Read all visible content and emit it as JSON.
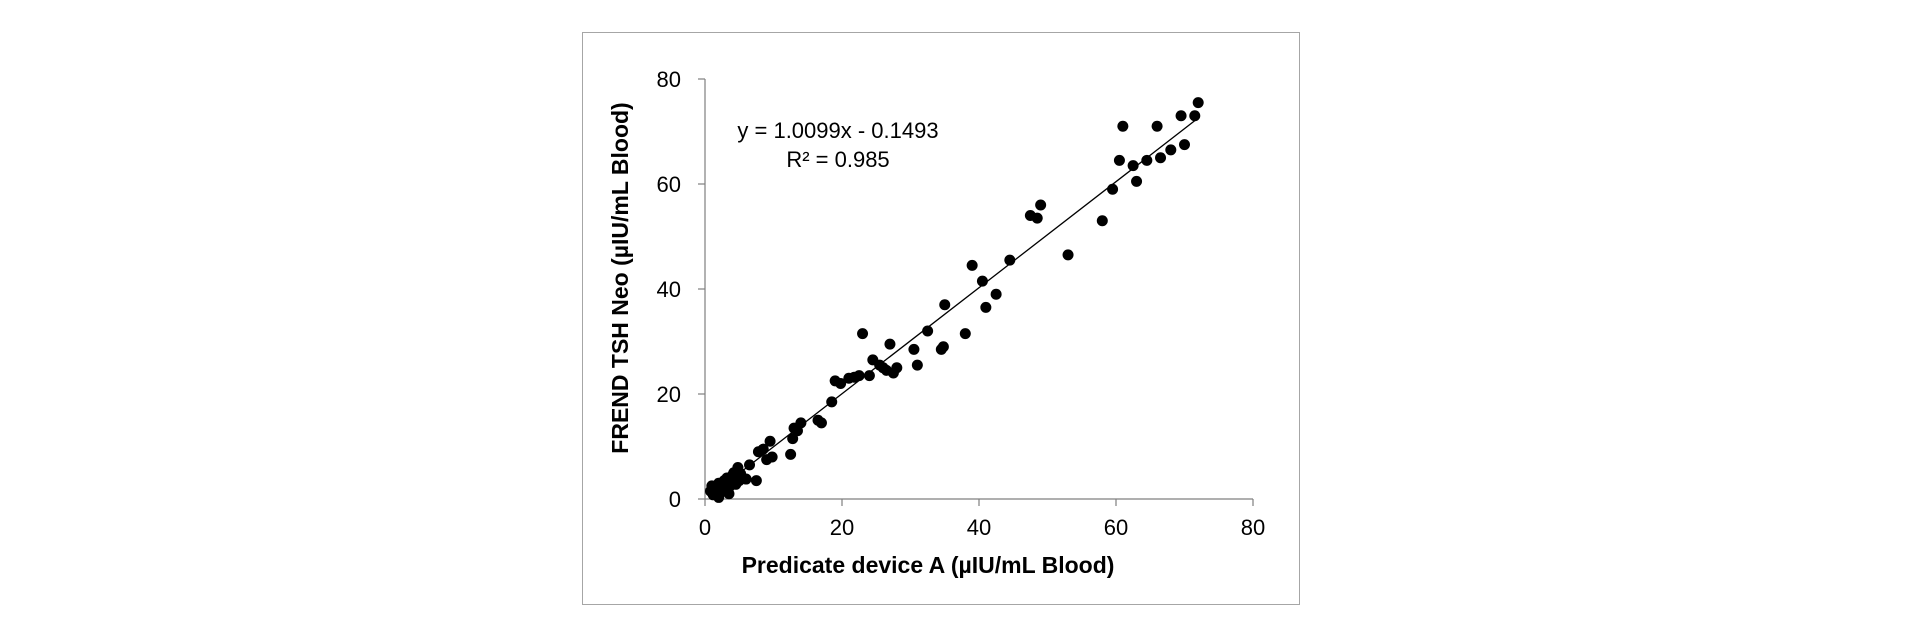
{
  "chart_data": {
    "type": "scatter",
    "xlabel": "Predicate device A (µIU/mL Blood)",
    "ylabel": "FREND TSH Neo (µIU/mL Blood)",
    "xlim": [
      0,
      80
    ],
    "ylim": [
      0,
      80
    ],
    "xticks": [
      0,
      20,
      40,
      60,
      80
    ],
    "yticks": [
      0,
      20,
      40,
      60,
      80
    ],
    "grid": false,
    "trendline": {
      "slope": 1.0099,
      "intercept": -0.1493,
      "x_range": [
        0.5,
        72
      ]
    },
    "annotations": [
      "y = 1.0099x - 0.1493",
      "R² = 0.985"
    ],
    "colors": {
      "points": "#000000",
      "trendline": "#000000",
      "axes": "#7f7f7f",
      "frame": "#a6a6a6"
    },
    "series": [
      {
        "points": [
          [
            0.8,
            1.5
          ],
          [
            1.0,
            2.5
          ],
          [
            1.2,
            0.8
          ],
          [
            1.5,
            2.0
          ],
          [
            1.8,
            1.2
          ],
          [
            2.0,
            0.3
          ],
          [
            2.0,
            3.0
          ],
          [
            2.3,
            1.8
          ],
          [
            2.5,
            2.5
          ],
          [
            2.8,
            3.5
          ],
          [
            3.0,
            1.5
          ],
          [
            3.2,
            4.0
          ],
          [
            3.5,
            2.2
          ],
          [
            3.5,
            1.0
          ],
          [
            3.8,
            3.0
          ],
          [
            4.0,
            4.5
          ],
          [
            4.2,
            5.0
          ],
          [
            4.5,
            2.8
          ],
          [
            4.8,
            6.0
          ],
          [
            5.0,
            3.5
          ],
          [
            5.2,
            4.8
          ],
          [
            5.5,
            4.0
          ],
          [
            6.0,
            3.8
          ],
          [
            6.5,
            6.5
          ],
          [
            7.5,
            3.5
          ],
          [
            7.8,
            9.0
          ],
          [
            8.5,
            9.5
          ],
          [
            9.0,
            7.5
          ],
          [
            9.5,
            11.0
          ],
          [
            9.8,
            8.0
          ],
          [
            12.5,
            8.5
          ],
          [
            12.8,
            11.5
          ],
          [
            13.0,
            13.5
          ],
          [
            13.5,
            13.0
          ],
          [
            14.0,
            14.5
          ],
          [
            16.5,
            15.0
          ],
          [
            17.0,
            14.5
          ],
          [
            18.5,
            18.5
          ],
          [
            19.0,
            22.5
          ],
          [
            19.8,
            22.0
          ],
          [
            21.0,
            23.0
          ],
          [
            21.8,
            23.2
          ],
          [
            22.5,
            23.5
          ],
          [
            23.0,
            31.5
          ],
          [
            24.0,
            23.5
          ],
          [
            24.5,
            26.5
          ],
          [
            25.5,
            25.5
          ],
          [
            26.0,
            25.0
          ],
          [
            26.5,
            24.5
          ],
          [
            27.0,
            29.5
          ],
          [
            27.5,
            24.0
          ],
          [
            28.0,
            25.0
          ],
          [
            30.5,
            28.5
          ],
          [
            31.0,
            25.5
          ],
          [
            32.5,
            32.0
          ],
          [
            34.5,
            28.5
          ],
          [
            34.8,
            29.0
          ],
          [
            35.0,
            37.0
          ],
          [
            38.0,
            31.5
          ],
          [
            39.0,
            44.5
          ],
          [
            40.5,
            41.5
          ],
          [
            41.0,
            36.5
          ],
          [
            42.5,
            39.0
          ],
          [
            44.5,
            45.5
          ],
          [
            47.5,
            54.0
          ],
          [
            48.5,
            53.5
          ],
          [
            49.0,
            56.0
          ],
          [
            53.0,
            46.5
          ],
          [
            58.0,
            53.0
          ],
          [
            59.5,
            59.0
          ],
          [
            60.5,
            64.5
          ],
          [
            61.0,
            71.0
          ],
          [
            62.5,
            63.5
          ],
          [
            63.0,
            60.5
          ],
          [
            64.5,
            64.5
          ],
          [
            66.0,
            71.0
          ],
          [
            66.5,
            65.0
          ],
          [
            68.0,
            66.5
          ],
          [
            69.5,
            73.0
          ],
          [
            70.0,
            67.5
          ],
          [
            71.5,
            73.0
          ],
          [
            72.0,
            75.5
          ]
        ]
      }
    ]
  }
}
